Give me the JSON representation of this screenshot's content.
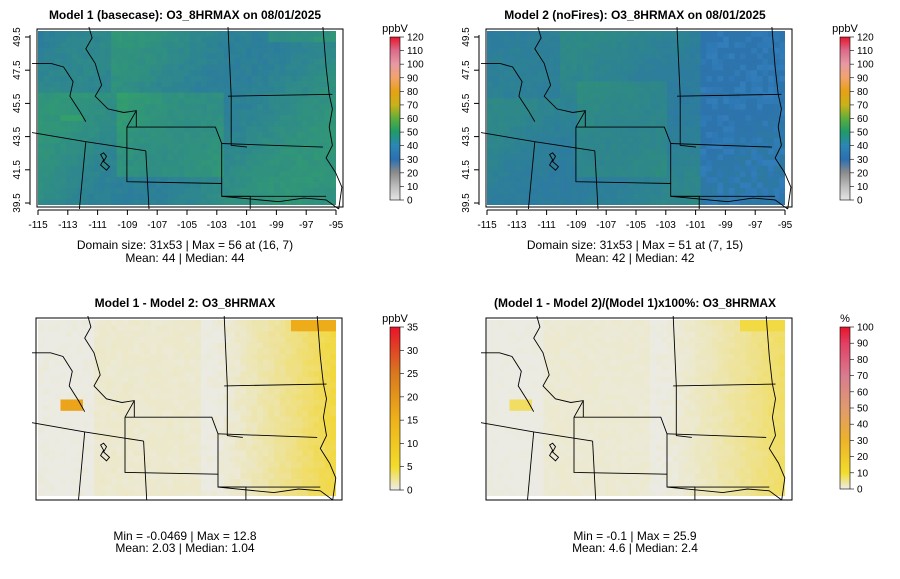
{
  "panels": [
    {
      "title": "Model 1 (basecase): O3_8HRMAX on 08/01/2025",
      "legend_unit": "ppbV",
      "legend_ticks": [
        "0",
        "10",
        "20",
        "30",
        "40",
        "50",
        "60",
        "70",
        "80",
        "90",
        "100",
        "110",
        "120"
      ],
      "x_ticks": [
        "-115",
        "-113",
        "-111",
        "-109",
        "-107",
        "-105",
        "-103",
        "-101",
        "-99",
        "-97",
        "-95"
      ],
      "y_ticks": [
        "39.5",
        "41.5",
        "43.5",
        "45.5",
        "47.5",
        "49.5"
      ],
      "stats_line1": "Domain size: 31x53 | Max = 56 at (16, 7)",
      "stats_line2": "Mean: 44 |  Median: 44"
    },
    {
      "title": "Model 2 (noFires): O3_8HRMAX on 08/01/2025",
      "legend_unit": "ppbV",
      "legend_ticks": [
        "0",
        "10",
        "20",
        "30",
        "40",
        "50",
        "60",
        "70",
        "80",
        "90",
        "100",
        "110",
        "120"
      ],
      "x_ticks": [
        "-115",
        "-113",
        "-111",
        "-109",
        "-107",
        "-105",
        "-103",
        "-101",
        "-99",
        "-97",
        "-95"
      ],
      "y_ticks": [
        "39.5",
        "41.5",
        "43.5",
        "45.5",
        "47.5",
        "49.5"
      ],
      "stats_line1": "Domain size: 31x53 | Max = 51 at (7, 15)",
      "stats_line2": "Mean: 42 |  Median: 42"
    },
    {
      "title": "Model 1 - Model 2: O3_8HRMAX",
      "legend_unit": "ppbV",
      "legend_ticks": [
        "0",
        "5",
        "10",
        "15",
        "20",
        "25",
        "30",
        "35"
      ],
      "stats_line1": "Min = -0.0469 | Max = 12.8",
      "stats_line2": "Mean: 2.03 |  Median: 1.04"
    },
    {
      "title": "(Model 1 - Model 2)/(Model 1)x100%: O3_8HRMAX",
      "legend_unit": "%",
      "legend_ticks": [
        "0",
        "10",
        "20",
        "30",
        "40",
        "50",
        "60",
        "70",
        "80",
        "90",
        "100"
      ],
      "stats_line1": "Min = -0.1 | Max = 25.9",
      "stats_line2": "Mean: 4.6 |  Median: 2.4"
    }
  ],
  "chart_data": [
    {
      "type": "heatmap",
      "title": "Model 1 (basecase): O3_8HRMAX on 08/01/2025",
      "variable": "O3_8HRMAX",
      "units": "ppbV",
      "domain_size": [
        31,
        53
      ],
      "xlim": [
        -115.5,
        -94.5
      ],
      "ylim": [
        39.5,
        49.8
      ],
      "legend_range": [
        0,
        120
      ],
      "max": 56,
      "max_at": [
        16,
        7
      ],
      "mean": 44,
      "median": 44
    },
    {
      "type": "heatmap",
      "title": "Model 2 (noFires): O3_8HRMAX on 08/01/2025",
      "variable": "O3_8HRMAX",
      "units": "ppbV",
      "domain_size": [
        31,
        53
      ],
      "xlim": [
        -115.5,
        -94.5
      ],
      "ylim": [
        39.5,
        49.8
      ],
      "legend_range": [
        0,
        120
      ],
      "max": 51,
      "max_at": [
        7,
        15
      ],
      "mean": 42,
      "median": 42
    },
    {
      "type": "heatmap",
      "title": "Model 1 - Model 2: O3_8HRMAX",
      "units": "ppbV",
      "legend_range": [
        0,
        35
      ],
      "min": -0.0469,
      "max": 12.8,
      "mean": 2.03,
      "median": 1.04
    },
    {
      "type": "heatmap",
      "title": "(Model 1 - Model 2)/(Model 1)x100%: O3_8HRMAX",
      "units": "%",
      "legend_range": [
        0,
        100
      ],
      "min": -0.1,
      "max": 25.9,
      "mean": 4.6,
      "median": 2.4
    }
  ]
}
